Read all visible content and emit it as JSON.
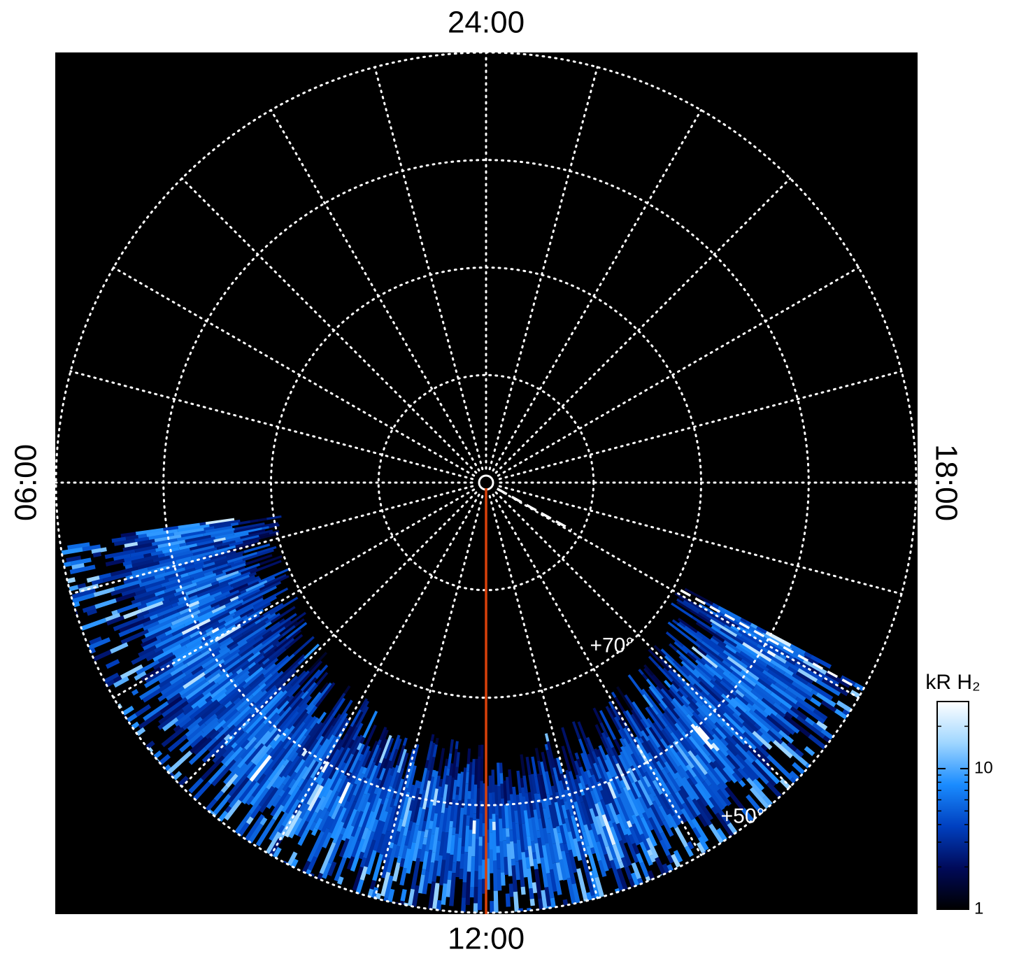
{
  "chart_data": {
    "type": "polar-image",
    "hour_labels": [
      {
        "value": 24,
        "label": "24:00"
      },
      {
        "value": 6,
        "label": "06:00"
      },
      {
        "value": 18,
        "label": "18:00"
      },
      {
        "value": 12,
        "label": "12:00"
      }
    ],
    "lat_lim": [
      90,
      50
    ],
    "lat_ticks": [
      80,
      70,
      60,
      50
    ],
    "lat_labels": [
      {
        "value": 70,
        "label": "+70°"
      },
      {
        "value": 50,
        "label": "+50°"
      }
    ],
    "colorbar_label": "kR H₂",
    "clim": [
      1,
      30
    ],
    "cticks": [
      1,
      10
    ],
    "log_scale": true,
    "colormap": [
      "#000000",
      "#000a5a",
      "#0040c0",
      "#1a8cff",
      "#9fd6ff",
      "#ffffff"
    ]
  }
}
